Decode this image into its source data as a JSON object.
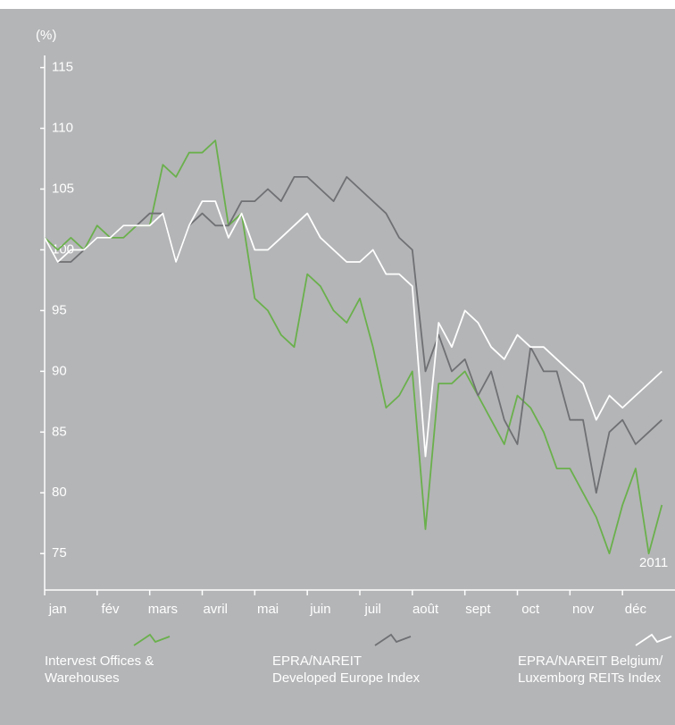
{
  "chart_data": {
    "type": "line",
    "y_label": "(%)",
    "annotation": "2011",
    "categories": [
      null,
      "jan",
      null,
      null,
      null,
      "fév",
      null,
      null,
      null,
      "mars",
      null,
      null,
      null,
      "avril",
      null,
      null,
      null,
      "mai",
      null,
      null,
      null,
      "juin",
      null,
      null,
      null,
      "juil",
      null,
      null,
      null,
      "août",
      null,
      null,
      null,
      "sept",
      null,
      null,
      null,
      "oct",
      null,
      null,
      null,
      "nov",
      null,
      null,
      null,
      "déc",
      null,
      null
    ],
    "ylim": [
      72,
      116
    ],
    "yticks": [
      75,
      80,
      85,
      90,
      95,
      100,
      105,
      110,
      115
    ],
    "series": [
      {
        "name": "Intervest Offices & Warehouses",
        "color": "#6ab04c",
        "values": [
          101,
          100,
          101,
          100,
          102,
          101,
          101,
          102,
          102,
          107,
          106,
          108,
          108,
          109,
          102,
          103,
          96,
          95,
          93,
          92,
          98,
          97,
          95,
          94,
          96,
          92,
          87,
          88,
          90,
          77,
          89,
          89,
          90,
          88,
          86,
          84,
          88,
          87,
          85,
          82,
          82,
          80,
          78,
          75,
          79,
          82,
          75,
          79
        ]
      },
      {
        "name": "EPRA/NAREIT Developed Europe Index",
        "color": "#6f7073",
        "values": [
          101,
          99,
          99,
          100,
          101,
          101,
          102,
          102,
          103,
          103,
          99,
          102,
          103,
          102,
          102,
          104,
          104,
          105,
          104,
          106,
          106,
          105,
          104,
          106,
          105,
          104,
          103,
          101,
          100,
          90,
          93,
          90,
          91,
          88,
          90,
          86,
          84,
          92,
          90,
          90,
          86,
          86,
          80,
          85,
          86,
          84,
          85,
          86
        ]
      },
      {
        "name": "EPRA/NAREIT Belgium/ Luxemborg REITs Index",
        "color": "#ffffff",
        "values": [
          101,
          99,
          100,
          100,
          101,
          101,
          102,
          102,
          102,
          103,
          99,
          102,
          104,
          104,
          101,
          103,
          100,
          100,
          101,
          102,
          103,
          101,
          100,
          99,
          99,
          100,
          98,
          98,
          97,
          83,
          94,
          92,
          95,
          94,
          92,
          91,
          93,
          92,
          92,
          91,
          90,
          89,
          86,
          88,
          87,
          88,
          89,
          90
        ]
      }
    ]
  }
}
